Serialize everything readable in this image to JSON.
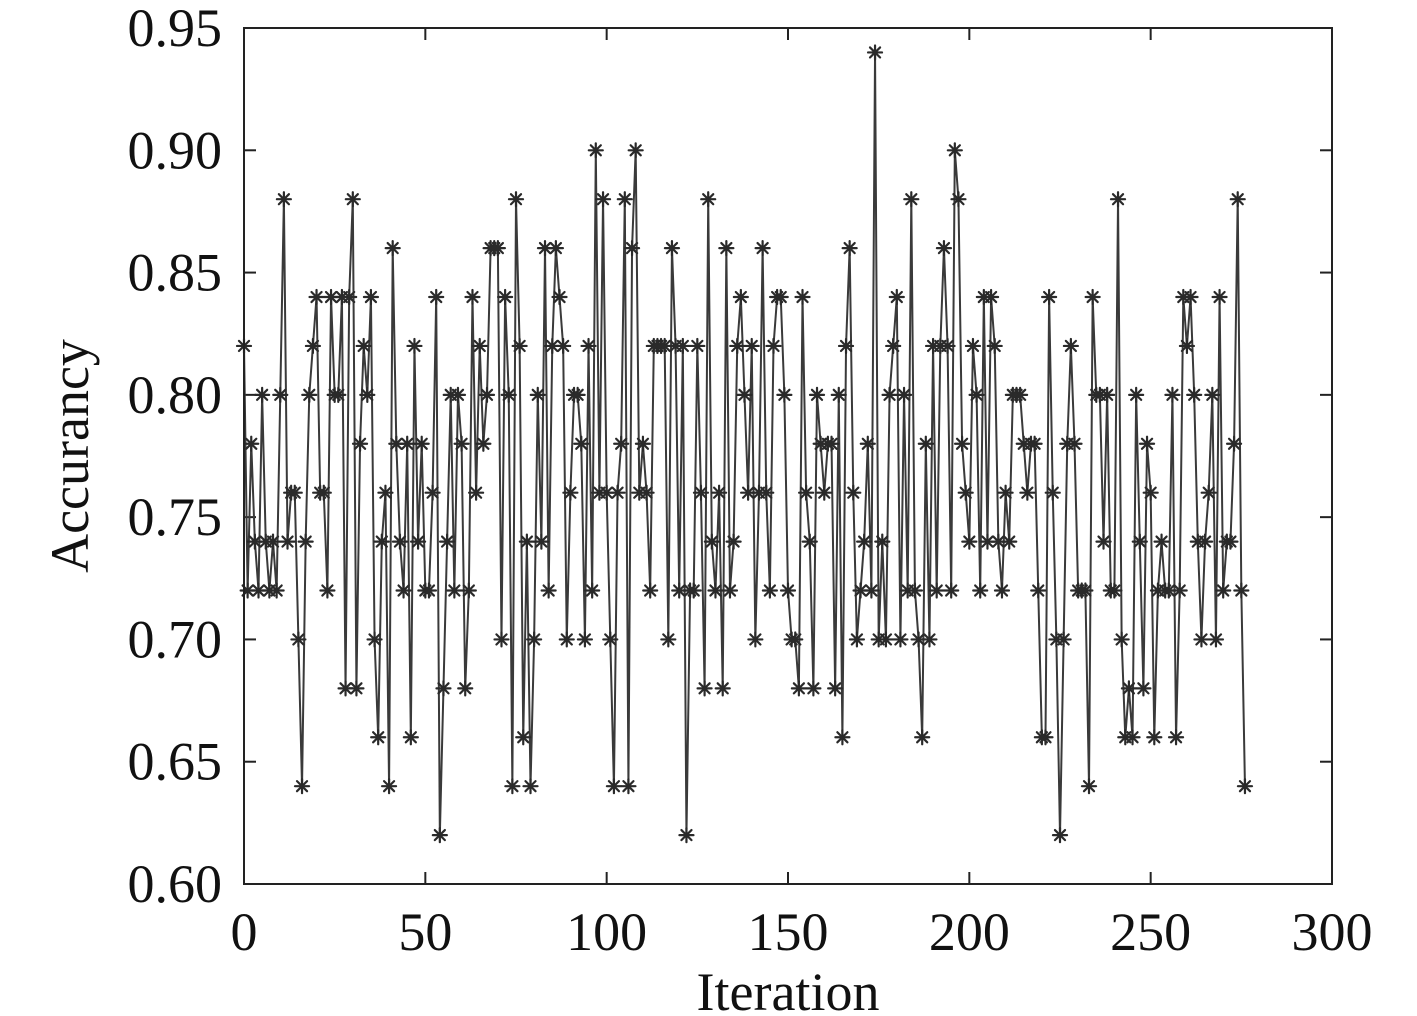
{
  "chart_data": {
    "type": "line",
    "xlabel": "Iteration",
    "ylabel": "Accurancy",
    "xlim": [
      0,
      300
    ],
    "ylim": [
      0.6,
      0.95
    ],
    "x_ticks": [
      "0",
      "50",
      "100",
      "150",
      "200",
      "250",
      "300"
    ],
    "y_ticks": [
      "0.60",
      "0.65",
      "0.70",
      "0.75",
      "0.80",
      "0.85",
      "0.90",
      "0.95"
    ],
    "grid": false,
    "marker": "asterisk",
    "line_color": "#3a3a3a",
    "series": [
      {
        "values": [
          0.82,
          0.72,
          0.78,
          0.74,
          0.72,
          0.8,
          0.74,
          0.72,
          0.74,
          0.72,
          0.8,
          0.88,
          0.74,
          0.76,
          0.76,
          0.7,
          0.64,
          0.74,
          0.8,
          0.82,
          0.84,
          0.76,
          0.76,
          0.72,
          0.84,
          0.8,
          0.8,
          0.84,
          0.68,
          0.84,
          0.88,
          0.68,
          0.78,
          0.82,
          0.8,
          0.84,
          0.7,
          0.66,
          0.74,
          0.76,
          0.64,
          0.86,
          0.78,
          0.74,
          0.72,
          0.78,
          0.66,
          0.82,
          0.74,
          0.78,
          0.72,
          0.72,
          0.76,
          0.84,
          0.62,
          0.68,
          0.74,
          0.8,
          0.72,
          0.8,
          0.78,
          0.68,
          0.72,
          0.84,
          0.76,
          0.82,
          0.78,
          0.8,
          0.86,
          0.86,
          0.86,
          0.7,
          0.84,
          0.8,
          0.64,
          0.88,
          0.82,
          0.66,
          0.74,
          0.64,
          0.7,
          0.8,
          0.74,
          0.86,
          0.72,
          0.82,
          0.86,
          0.84,
          0.82,
          0.7,
          0.76,
          0.8,
          0.8,
          0.78,
          0.7,
          0.82,
          0.72,
          0.9,
          0.76,
          0.88,
          0.76,
          0.7,
          0.64,
          0.76,
          0.78,
          0.88,
          0.64,
          0.86,
          0.9,
          0.76,
          0.78,
          0.76,
          0.72,
          0.82,
          0.82,
          0.82,
          0.82,
          0.7,
          0.86,
          0.82,
          0.72,
          0.82,
          0.62,
          0.72,
          0.72,
          0.82,
          0.76,
          0.68,
          0.88,
          0.74,
          0.72,
          0.76,
          0.68,
          0.86,
          0.72,
          0.74,
          0.82,
          0.84,
          0.8,
          0.76,
          0.82,
          0.7,
          0.76,
          0.86,
          0.76,
          0.72,
          0.82,
          0.84,
          0.84,
          0.8,
          0.72,
          0.7,
          0.7,
          0.68,
          0.84,
          0.76,
          0.74,
          0.68,
          0.8,
          0.78,
          0.76,
          0.78,
          0.78,
          0.68,
          0.8,
          0.66,
          0.82,
          0.86,
          0.76,
          0.7,
          0.72,
          0.74,
          0.78,
          0.72,
          0.94,
          0.7,
          0.74,
          0.7,
          0.8,
          0.82,
          0.84,
          0.7,
          0.8,
          0.72,
          0.88,
          0.72,
          0.7,
          0.66,
          0.78,
          0.7,
          0.82,
          0.72,
          0.82,
          0.86,
          0.82,
          0.72,
          0.9,
          0.88,
          0.78,
          0.76,
          0.74,
          0.82,
          0.8,
          0.72,
          0.84,
          0.74,
          0.84,
          0.82,
          0.74,
          0.72,
          0.76,
          0.74,
          0.8,
          0.8,
          0.8,
          0.78,
          0.76,
          0.78,
          0.78,
          0.72,
          0.66,
          0.66,
          0.84,
          0.76,
          0.7,
          0.62,
          0.7,
          0.78,
          0.82,
          0.78,
          0.72,
          0.72,
          0.72,
          0.64,
          0.84,
          0.8,
          0.8,
          0.74,
          0.8,
          0.72,
          0.72,
          0.88,
          0.7,
          0.66,
          0.68,
          0.66,
          0.8,
          0.74,
          0.68,
          0.78,
          0.76,
          0.66,
          0.72,
          0.74,
          0.72,
          0.72,
          0.8,
          0.66,
          0.72,
          0.84,
          0.82,
          0.84,
          0.8,
          0.74,
          0.7,
          0.74,
          0.76,
          0.8,
          0.7,
          0.84,
          0.72,
          0.74,
          0.74,
          0.78,
          0.88,
          0.72,
          0.64
        ]
      }
    ]
  }
}
